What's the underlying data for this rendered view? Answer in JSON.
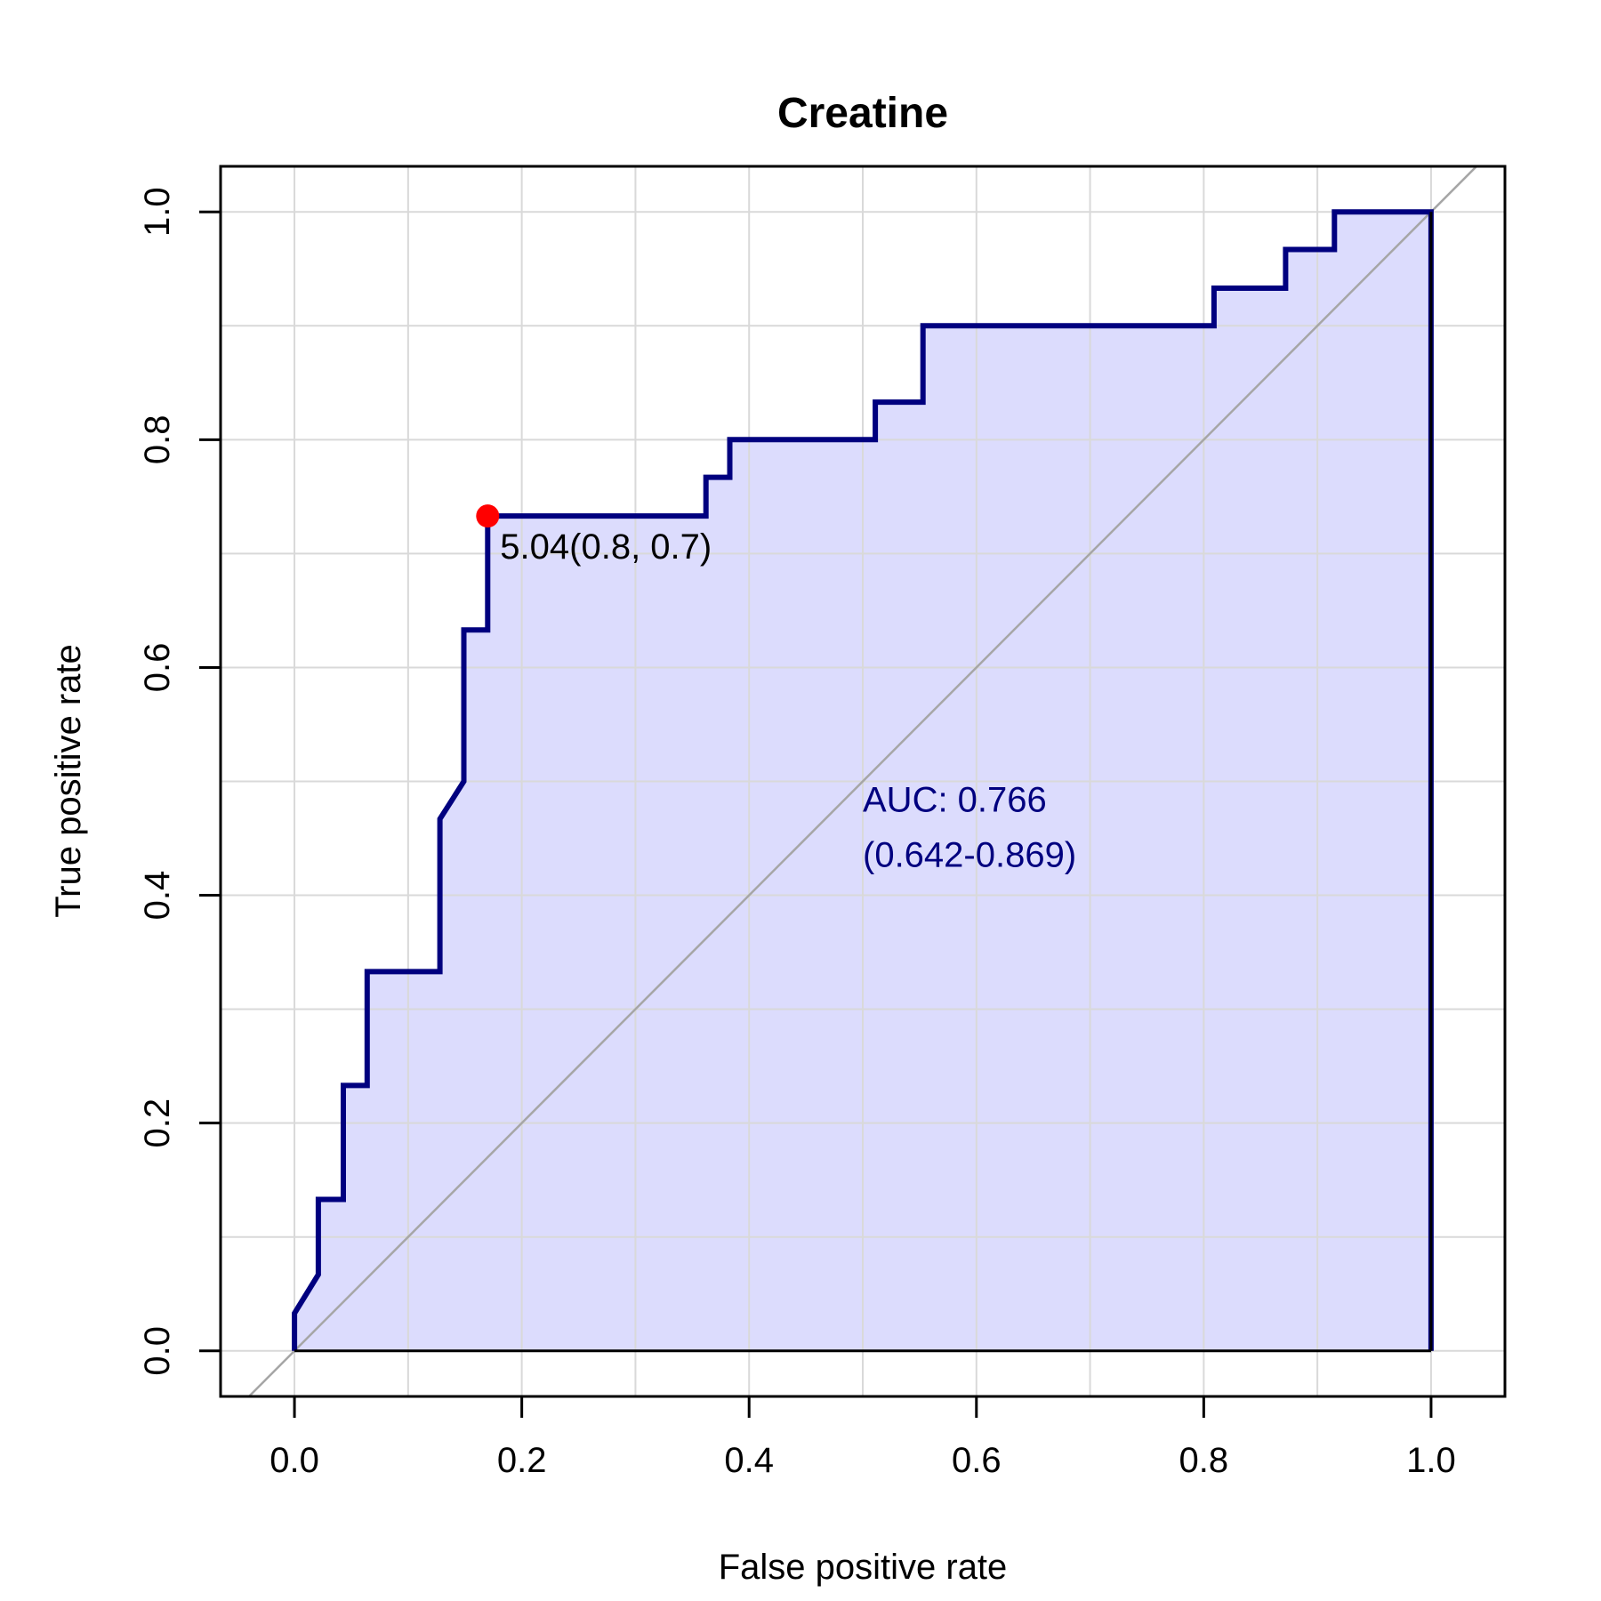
{
  "chart_data": {
    "type": "line",
    "title": "Creatine",
    "xlabel": "False positive rate",
    "ylabel": "True positive rate",
    "xlim": [
      -0.065,
      1.065
    ],
    "ylim": [
      -0.04,
      1.04
    ],
    "x_ticks": [
      "0.0",
      "0.2",
      "0.4",
      "0.6",
      "0.8",
      "1.0"
    ],
    "y_ticks": [
      "0.0",
      "0.2",
      "0.4",
      "0.6",
      "0.8",
      "1.0"
    ],
    "grid": true,
    "grid_step": 0.1,
    "series": [
      {
        "x": [
          0,
          0,
          0.021,
          0.021,
          0.043,
          0.043,
          0.064,
          0.064,
          0.128,
          0.128,
          0.149,
          0.149,
          0.17,
          0.17,
          0.362,
          0.362,
          0.383,
          0.383,
          0.511,
          0.511,
          0.553,
          0.553,
          0.809,
          0.809,
          0.872,
          0.872,
          0.915,
          0.915,
          1.0,
          1.0
        ],
        "y": [
          0,
          0.033,
          0.067,
          0.133,
          0.133,
          0.233,
          0.233,
          0.333,
          0.333,
          0.467,
          0.5,
          0.633,
          0.633,
          0.733,
          0.733,
          0.767,
          0.767,
          0.8,
          0.8,
          0.833,
          0.833,
          0.9,
          0.9,
          0.933,
          0.933,
          0.967,
          0.967,
          1.0,
          1.0,
          0
        ]
      }
    ],
    "diagonal": true,
    "best_point": {
      "x": 0.17,
      "y": 0.733
    },
    "best_point_label": "5.04(0.8, 0.7)",
    "auc_label": "AUC: 0.766",
    "auc_ci_label": "(0.642-0.869)",
    "colors": {
      "curve": "#00007f",
      "fill": "#dcdcfd",
      "diagonal": "#a6a6a6",
      "grid": "#d9d9d9",
      "best_point": "#ff0000",
      "auc_text": "#00007f"
    }
  }
}
